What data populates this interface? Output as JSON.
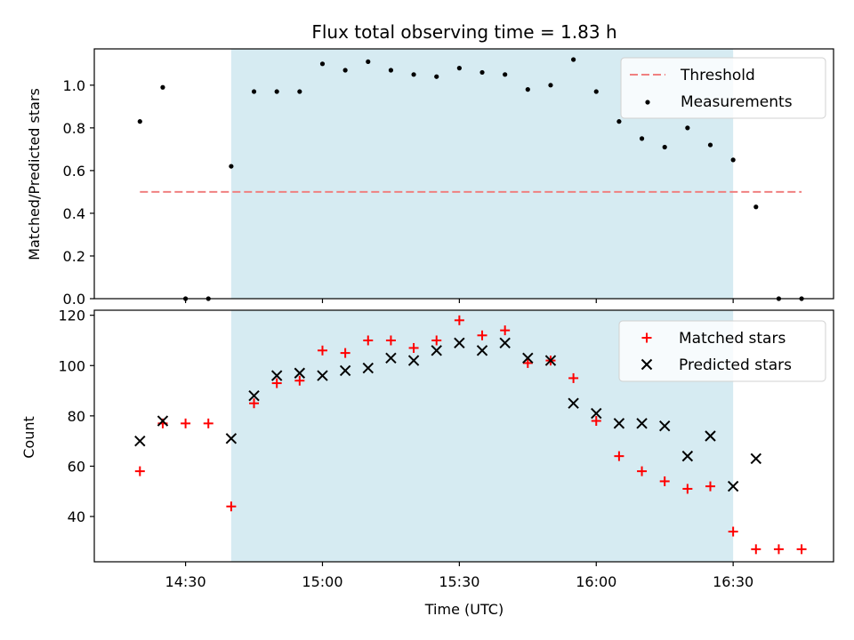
{
  "chart_data": [
    {
      "type": "scatter",
      "title": "Flux total observing time = 1.83 h",
      "ylabel": "Matched/Predicted stars",
      "xlabel": "",
      "ylim": [
        0,
        1.17
      ],
      "yticks": [
        "0.0",
        "0.2",
        "0.4",
        "0.6",
        "0.8",
        "1.0"
      ],
      "shaded_interval": [
        "14:40",
        "16:30"
      ],
      "threshold": {
        "name": "Threshold",
        "value": 0.5,
        "x_start": "14:20",
        "x_end": "16:45",
        "color": "#f08080"
      },
      "series": [
        {
          "name": "Measurements",
          "color": "#000000",
          "x": [
            "14:20",
            "14:25",
            "14:30",
            "14:35",
            "14:40",
            "14:45",
            "14:50",
            "14:55",
            "15:00",
            "15:05",
            "15:10",
            "15:15",
            "15:20",
            "15:25",
            "15:30",
            "15:35",
            "15:40",
            "15:45",
            "15:50",
            "15:55",
            "16:00",
            "16:05",
            "16:10",
            "16:15",
            "16:20",
            "16:25",
            "16:30",
            "16:35",
            "16:40",
            "16:45"
          ],
          "y": [
            0.83,
            0.99,
            0.0,
            0.0,
            0.62,
            0.97,
            0.97,
            0.97,
            1.1,
            1.07,
            1.11,
            1.07,
            1.05,
            1.04,
            1.08,
            1.06,
            1.05,
            0.98,
            1.0,
            1.12,
            0.97,
            0.83,
            0.75,
            0.71,
            0.8,
            0.72,
            0.65,
            0.43,
            0.0,
            0.0
          ]
        }
      ],
      "legend": "upper right"
    },
    {
      "type": "scatter",
      "title": "",
      "ylabel": "Count",
      "xlabel": "Time (UTC)",
      "ylim": [
        22,
        122
      ],
      "yticks": [
        "40",
        "60",
        "80",
        "100",
        "120"
      ],
      "xticks": [
        "14:30",
        "15:00",
        "15:30",
        "16:00",
        "16:30"
      ],
      "shaded_interval": [
        "14:40",
        "16:30"
      ],
      "series": [
        {
          "name": "Matched stars",
          "marker": "plus",
          "color": "#ff0000",
          "x": [
            "14:20",
            "14:25",
            "14:30",
            "14:35",
            "14:40",
            "14:45",
            "14:50",
            "14:55",
            "15:00",
            "15:05",
            "15:10",
            "15:15",
            "15:20",
            "15:25",
            "15:30",
            "15:35",
            "15:40",
            "15:45",
            "15:50",
            "15:55",
            "16:00",
            "16:05",
            "16:10",
            "16:15",
            "16:20",
            "16:25",
            "16:30",
            "16:35",
            "16:40",
            "16:45"
          ],
          "y": [
            58,
            77,
            77,
            77,
            44,
            85,
            93,
            94,
            106,
            105,
            110,
            110,
            107,
            110,
            118,
            112,
            114,
            101,
            102,
            95,
            78,
            64,
            58,
            54,
            51,
            52,
            34,
            27,
            27,
            27
          ]
        },
        {
          "name": "Predicted stars",
          "marker": "x",
          "color": "#000000",
          "x": [
            "14:20",
            "14:25",
            "14:40",
            "14:45",
            "14:50",
            "14:55",
            "15:00",
            "15:05",
            "15:10",
            "15:15",
            "15:20",
            "15:25",
            "15:30",
            "15:35",
            "15:40",
            "15:45",
            "15:50",
            "15:55",
            "16:00",
            "16:05",
            "16:10",
            "16:15",
            "16:20",
            "16:25",
            "16:30",
            "16:35"
          ],
          "y": [
            70,
            78,
            71,
            88,
            96,
            97,
            96,
            98,
            99,
            103,
            102,
            106,
            109,
            106,
            109,
            103,
            102,
            85,
            81,
            77,
            77,
            76,
            64,
            72,
            52,
            63
          ]
        }
      ],
      "legend": "upper right"
    }
  ]
}
